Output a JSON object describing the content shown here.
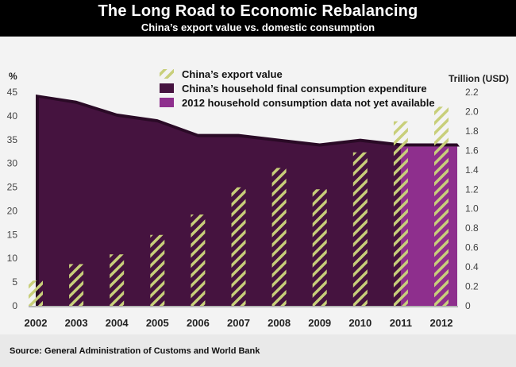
{
  "header": {
    "title": "The Long Road to Economic Rebalancing",
    "subtitle": "China’s export value vs. domestic consumption"
  },
  "source": "Source: General Administration of Customs and World Bank",
  "chart_data": {
    "type": "bar",
    "categories": [
      "2002",
      "2003",
      "2004",
      "2005",
      "2006",
      "2007",
      "2008",
      "2009",
      "2010",
      "2011",
      "2012"
    ],
    "left_axis": {
      "label": "%",
      "ylim": [
        0,
        45
      ],
      "ticks": [
        0,
        5,
        10,
        15,
        20,
        25,
        30,
        35,
        40,
        45
      ]
    },
    "right_axis": {
      "label": "Trillion (USD)",
      "ylim": [
        0,
        2.2
      ],
      "ticks": [
        "0",
        "0.2",
        "0.4",
        "0.6",
        "0.8",
        "1.0",
        "1.2",
        "1.4",
        "1.6",
        "1.8",
        "2.0",
        "2.2"
      ]
    },
    "series": [
      {
        "name": "China’s export value",
        "type": "bar",
        "axis": "right",
        "pattern": "hatched",
        "color": "#c8cf7a",
        "values": [
          0.26,
          0.43,
          0.53,
          0.73,
          0.94,
          1.22,
          1.42,
          1.2,
          1.58,
          1.9,
          2.05
        ]
      },
      {
        "name": "China’s household final consumption expenditure",
        "type": "area",
        "axis": "left",
        "color": "#45133f",
        "values": [
          44.5,
          43.2,
          40.5,
          39.3,
          36.2,
          36.2,
          35.2,
          34.2,
          35.2,
          34.2,
          null
        ]
      },
      {
        "name": "2012 household consumption data not yet available",
        "type": "area",
        "axis": "left",
        "color": "#8e2f8d",
        "values": [
          null,
          null,
          null,
          null,
          null,
          null,
          null,
          null,
          null,
          34.2,
          34.2
        ]
      }
    ],
    "legend_position": "top-center",
    "grid": false
  }
}
